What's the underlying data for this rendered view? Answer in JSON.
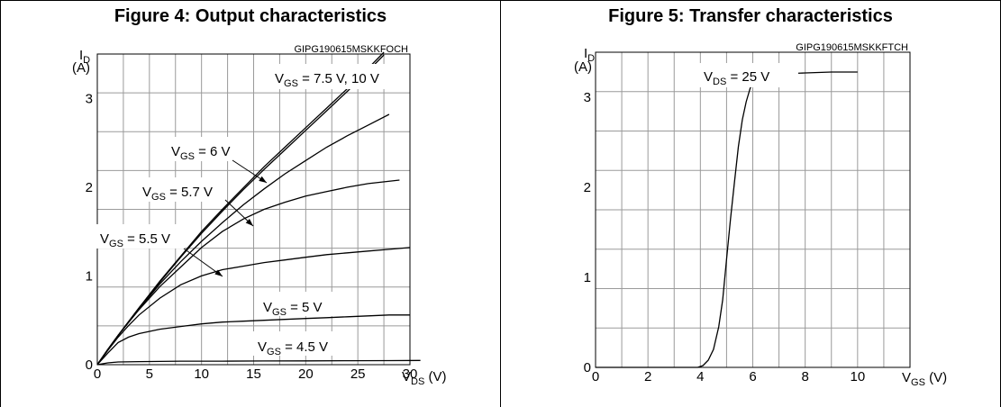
{
  "chart_data": [
    {
      "type": "line",
      "title": "Figure 4: Output characteristics",
      "code": "GIPG190615MSKKFOCH",
      "ylabel": {
        "main": "I",
        "sub": "D",
        "unit": "(A)"
      },
      "xlabel": {
        "main": "V",
        "sub": "DS",
        "unit": " (V)"
      },
      "xlim": [
        0,
        30
      ],
      "ylim": [
        0,
        3.5
      ],
      "xticks": [
        0,
        5,
        10,
        15,
        20,
        25,
        30
      ],
      "yticks": [
        0,
        1,
        2,
        3
      ],
      "grid": true,
      "series": [
        {
          "name": "VGS = 7.5 V",
          "x": [
            0,
            1,
            2,
            4,
            6,
            8,
            10,
            12,
            14,
            16,
            18,
            20,
            22,
            24,
            26,
            27.5
          ],
          "y": [
            0,
            0.17,
            0.33,
            0.64,
            0.93,
            1.21,
            1.48,
            1.73,
            1.97,
            2.2,
            2.42,
            2.64,
            2.86,
            3.08,
            3.31,
            3.49
          ]
        },
        {
          "name": "VGS = 10 V",
          "x": [
            0,
            1,
            2,
            4,
            6,
            8,
            10,
            12,
            14,
            16,
            18,
            20,
            22,
            24,
            26,
            27.5
          ],
          "y": [
            0,
            0.17,
            0.33,
            0.64,
            0.94,
            1.22,
            1.5,
            1.75,
            1.99,
            2.23,
            2.45,
            2.67,
            2.89,
            3.11,
            3.34,
            3.52
          ]
        },
        {
          "name": "VGS = 6 V",
          "x": [
            0,
            1,
            2,
            4,
            6,
            8,
            10,
            12,
            14,
            16,
            18,
            20,
            22,
            24,
            26,
            28
          ],
          "y": [
            0,
            0.17,
            0.33,
            0.63,
            0.91,
            1.16,
            1.39,
            1.6,
            1.8,
            1.98,
            2.15,
            2.3,
            2.45,
            2.58,
            2.7,
            2.82
          ]
        },
        {
          "name": "VGS = 5.7 V",
          "x": [
            0,
            1,
            2,
            4,
            6,
            8,
            10,
            12,
            14,
            16,
            18,
            20,
            22,
            24,
            26,
            29
          ],
          "y": [
            0,
            0.17,
            0.33,
            0.62,
            0.88,
            1.1,
            1.32,
            1.5,
            1.64,
            1.75,
            1.83,
            1.9,
            1.95,
            2,
            2.04,
            2.08
          ]
        },
        {
          "name": "VGS = 5.5 V",
          "x": [
            0,
            1,
            2,
            3,
            4,
            6,
            8,
            10,
            12,
            14,
            16,
            18,
            20,
            22,
            24,
            26,
            28,
            30
          ],
          "y": [
            0,
            0.16,
            0.31,
            0.44,
            0.56,
            0.75,
            0.9,
            1,
            1.07,
            1.11,
            1.15,
            1.18,
            1.21,
            1.24,
            1.26,
            1.28,
            1.3,
            1.32
          ]
        },
        {
          "name": "VGS = 5 V",
          "x": [
            0,
            1,
            2,
            3,
            4,
            6,
            8,
            10,
            12,
            14,
            16,
            18,
            20,
            22,
            24,
            26,
            28,
            30
          ],
          "y": [
            0,
            0.13,
            0.25,
            0.31,
            0.35,
            0.4,
            0.43,
            0.46,
            0.48,
            0.49,
            0.5,
            0.51,
            0.52,
            0.53,
            0.54,
            0.55,
            0.56,
            0.56
          ]
        },
        {
          "name": "VGS = 4.5 V",
          "x": [
            0,
            1,
            2,
            4,
            8,
            12,
            16,
            20,
            24,
            28,
            31
          ],
          "y": [
            0,
            0.02,
            0.03,
            0.035,
            0.04,
            0.04,
            0.042,
            0.043,
            0.045,
            0.046,
            0.048
          ]
        }
      ],
      "annotations": [
        {
          "main": "V",
          "sub": "GS",
          "text": " = 7.5 V, 10 V"
        },
        {
          "main": "V",
          "sub": "GS",
          "text": " = 6 V"
        },
        {
          "main": "V",
          "sub": "GS",
          "text": " = 5.7 V"
        },
        {
          "main": "V",
          "sub": "GS",
          "text": " = 5.5 V"
        },
        {
          "main": "V",
          "sub": "GS",
          "text": " = 5 V"
        },
        {
          "main": "V",
          "sub": "GS",
          "text": " = 4.5 V"
        }
      ]
    },
    {
      "type": "line",
      "title": "Figure 5: Transfer characteristics",
      "code": "GIPG190615MSKKFTCH",
      "ylabel": {
        "main": "I",
        "sub": "D",
        "unit": "(A)"
      },
      "xlabel": {
        "main": "V",
        "sub": "GS",
        "unit": " (V)"
      },
      "xlim": [
        0,
        12
      ],
      "ylim": [
        0,
        3.5
      ],
      "xticks": [
        0,
        2,
        4,
        6,
        8,
        10
      ],
      "yticks": [
        0,
        1,
        2,
        3
      ],
      "grid": true,
      "series": [
        {
          "name": "",
          "x": [
            0,
            3.9,
            4.1,
            4.3,
            4.5,
            4.7,
            4.85,
            5,
            5.15,
            5.3,
            5.45,
            5.6,
            5.75,
            5.9,
            6.05,
            6.25,
            6.5,
            6.8,
            7.2,
            8,
            9,
            10
          ],
          "y": [
            0,
            0,
            0.02,
            0.08,
            0.2,
            0.45,
            0.75,
            1.2,
            1.65,
            2.05,
            2.45,
            2.75,
            2.95,
            3.1,
            3.18,
            3.22,
            3.24,
            3.25,
            3.26,
            3.27,
            3.28,
            3.28
          ]
        }
      ],
      "annotations": [
        {
          "main": "V",
          "sub": "DS",
          "text": " = 25 V"
        }
      ]
    }
  ]
}
